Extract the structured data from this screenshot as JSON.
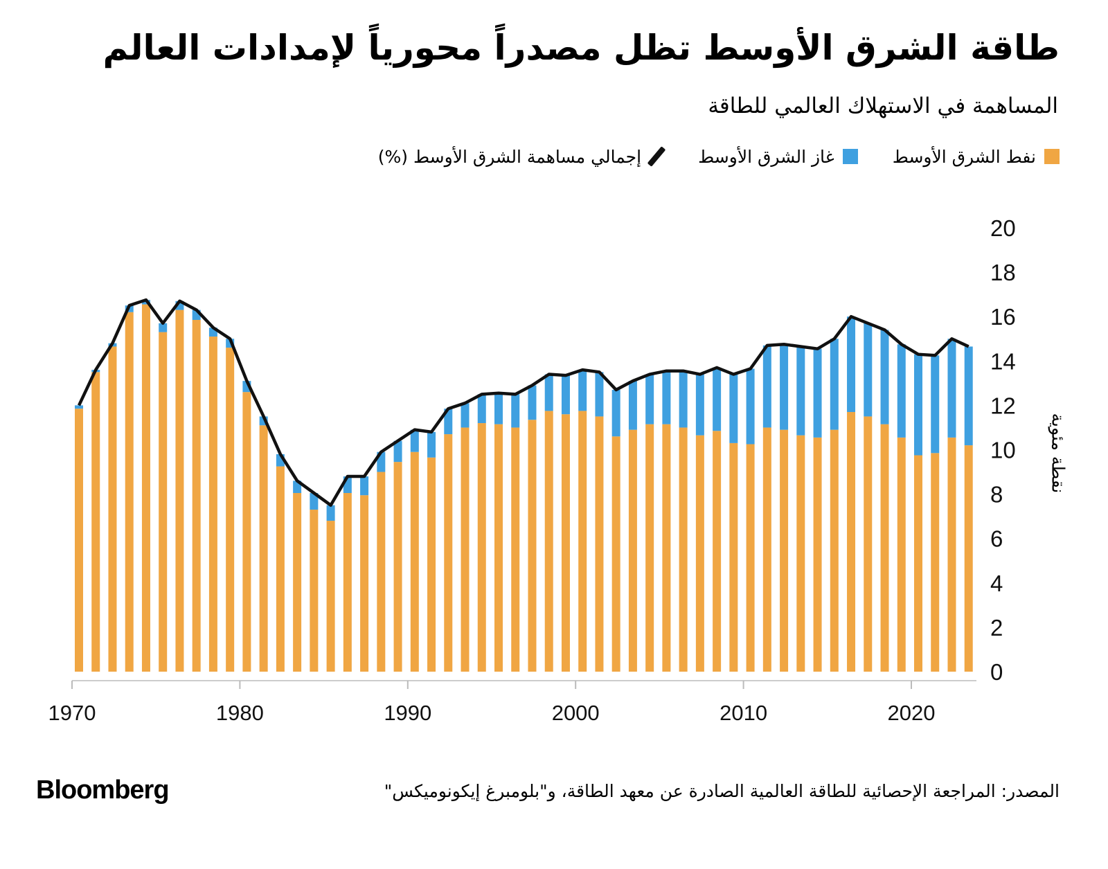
{
  "header": {
    "title": "طاقة الشرق الأوسط تظل مصدراً محورياً لإمدادات العالم",
    "subtitle": "المساهمة في الاستهلاك العالمي للطاقة"
  },
  "legend": {
    "oil": "نفط الشرق الأوسط",
    "gas": "غاز الشرق الأوسط",
    "total": "إجمالي مساهمة الشرق الأوسط (%)"
  },
  "footer": {
    "source": "المصدر: المراجعة الإحصائية للطاقة العالمية الصادرة عن معهد الطاقة، و\"بلومبرغ إيكونوميكس\"",
    "logo": "Bloomberg"
  },
  "colors": {
    "oil": "#F0A643",
    "gas": "#3FA0E0",
    "total": "#111111"
  },
  "chart_data": {
    "type": "bar",
    "stacked": true,
    "title": "طاقة الشرق الأوسط تظل مصدراً محورياً لإمدادات العالم",
    "subtitle": "المساهمة في الاستهلاك العالمي للطاقة",
    "ylabel": "نقطة مئوية",
    "xlabel": "",
    "ylim": [
      0,
      20
    ],
    "yticks": [
      0,
      2,
      4,
      6,
      8,
      10,
      12,
      14,
      16,
      18,
      20
    ],
    "xticks": [
      1970,
      1980,
      1990,
      2000,
      2010,
      2020
    ],
    "y_axis_position": "right",
    "grid": false,
    "legend_position": "top",
    "x": [
      1970,
      1971,
      1972,
      1973,
      1974,
      1975,
      1976,
      1977,
      1978,
      1979,
      1980,
      1981,
      1982,
      1983,
      1984,
      1985,
      1986,
      1987,
      1988,
      1989,
      1990,
      1991,
      1992,
      1993,
      1994,
      1995,
      1996,
      1997,
      1998,
      1999,
      2000,
      2001,
      2002,
      2003,
      2004,
      2005,
      2006,
      2007,
      2008,
      2009,
      2010,
      2011,
      2012,
      2013,
      2014,
      2015,
      2016,
      2017,
      2018,
      2019,
      2020,
      2021,
      2022,
      2023
    ],
    "series": [
      {
        "name": "نفط الشرق الأوسط",
        "type": "bar",
        "values": [
          11.85,
          13.5,
          14.65,
          16.2,
          16.55,
          15.3,
          16.3,
          15.85,
          15.1,
          14.6,
          12.6,
          11.1,
          9.25,
          8.05,
          7.3,
          6.8,
          8.05,
          7.95,
          9.0,
          9.45,
          9.9,
          9.65,
          10.7,
          11.0,
          11.2,
          11.15,
          11.0,
          11.35,
          11.75,
          11.6,
          11.75,
          11.5,
          10.6,
          10.9,
          11.15,
          11.15,
          11.0,
          10.65,
          10.85,
          10.3,
          10.25,
          11.0,
          10.9,
          10.65,
          10.55,
          10.9,
          11.7,
          11.5,
          11.15,
          10.55,
          9.75,
          9.85,
          10.55,
          10.2
        ]
      },
      {
        "name": "غاز الشرق الأوسط",
        "type": "bar",
        "values": [
          0.15,
          0.1,
          0.15,
          0.3,
          0.2,
          0.4,
          0.4,
          0.45,
          0.4,
          0.4,
          0.5,
          0.4,
          0.55,
          0.55,
          0.75,
          0.7,
          0.75,
          0.85,
          0.9,
          0.95,
          1.0,
          1.15,
          1.15,
          1.1,
          1.3,
          1.4,
          1.5,
          1.55,
          1.65,
          1.75,
          1.85,
          2.0,
          2.1,
          2.2,
          2.25,
          2.4,
          2.55,
          2.75,
          2.85,
          3.1,
          3.4,
          3.7,
          3.85,
          4.0,
          4.0,
          4.1,
          4.3,
          4.2,
          4.25,
          4.2,
          4.55,
          4.4,
          4.45,
          4.45
        ]
      },
      {
        "name": "إجمالي مساهمة الشرق الأوسط (%)",
        "type": "line",
        "values": [
          12.0,
          13.6,
          14.8,
          16.5,
          16.75,
          15.7,
          16.7,
          16.3,
          15.5,
          15.0,
          13.1,
          11.5,
          9.8,
          8.6,
          8.05,
          7.5,
          8.8,
          8.8,
          9.9,
          10.4,
          10.9,
          10.8,
          11.85,
          12.1,
          12.5,
          12.55,
          12.5,
          12.9,
          13.4,
          13.35,
          13.6,
          13.5,
          12.7,
          13.1,
          13.4,
          13.55,
          13.55,
          13.4,
          13.7,
          13.4,
          13.65,
          14.7,
          14.75,
          14.65,
          14.55,
          15.0,
          16.0,
          15.7,
          15.4,
          14.75,
          14.3,
          14.25,
          15.0,
          14.65
        ]
      }
    ]
  }
}
